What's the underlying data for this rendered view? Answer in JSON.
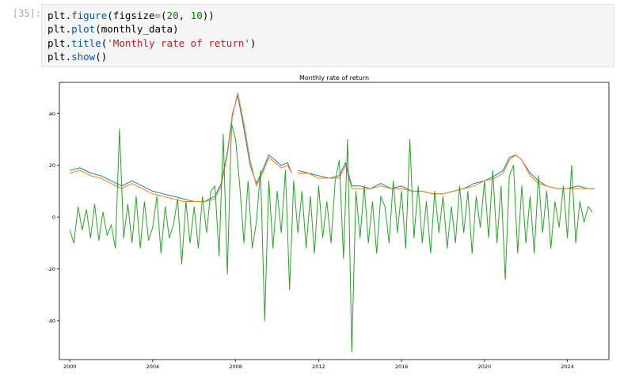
{
  "cell": {
    "prompt": "[35]:",
    "code_lines": [
      [
        {
          "t": "plt",
          "c": "k-var"
        },
        {
          "t": ".",
          "c": "k-p"
        },
        {
          "t": "figure",
          "c": "k-attr"
        },
        {
          "t": "(figsize",
          "c": "k-p"
        },
        {
          "t": "=",
          "c": "k-op"
        },
        {
          "t": "(",
          "c": "k-p"
        },
        {
          "t": "20",
          "c": "k-num"
        },
        {
          "t": ", ",
          "c": "k-p"
        },
        {
          "t": "10",
          "c": "k-num"
        },
        {
          "t": "))",
          "c": "k-p"
        }
      ],
      [
        {
          "t": "plt",
          "c": "k-var"
        },
        {
          "t": ".",
          "c": "k-p"
        },
        {
          "t": "plot",
          "c": "k-attr"
        },
        {
          "t": "(monthly_data)",
          "c": "k-p"
        }
      ],
      [
        {
          "t": "plt",
          "c": "k-var"
        },
        {
          "t": ".",
          "c": "k-p"
        },
        {
          "t": "title",
          "c": "k-attr"
        },
        {
          "t": "(",
          "c": "k-p"
        },
        {
          "t": "'Monthly rate of return'",
          "c": "k-str"
        },
        {
          "t": ")",
          "c": "k-p"
        }
      ],
      [
        {
          "t": "plt",
          "c": "k-var"
        },
        {
          "t": ".",
          "c": "k-p"
        },
        {
          "t": "show",
          "c": "k-attr"
        },
        {
          "t": "()",
          "c": "k-p"
        }
      ]
    ]
  },
  "chart_data": {
    "type": "line",
    "title": "Monthly rate of return",
    "xlabel": "",
    "ylabel": "",
    "xlim": [
      1999.5,
      2026.0
    ],
    "ylim": [
      -55,
      52
    ],
    "xticks": [
      2000,
      2004,
      2008,
      2012,
      2016,
      2020,
      2024
    ],
    "yticks": [
      40,
      20,
      0,
      -20,
      -40
    ],
    "grid": false,
    "colors": [
      "#1f77b4",
      "#ff7f0e",
      "#2ca02c"
    ],
    "series": [
      {
        "x": [
          2000.0,
          2000.5,
          2001.0,
          2001.5,
          2002.0,
          2002.5,
          2003.0,
          2003.5,
          2004.0,
          2004.5,
          2005.0,
          2005.5,
          2006.0,
          2006.5,
          2007.0,
          2007.3,
          2007.6,
          2007.85,
          2008.1,
          2008.4,
          2008.7,
          2009.0,
          2009.3,
          2009.6,
          2009.9,
          2010.2,
          2010.5,
          2010.7,
          null,
          2011.0,
          2011.5,
          2012.0,
          2012.5,
          2013.0,
          2013.3,
          2013.6,
          2014.0,
          2014.5,
          2015.0,
          2015.5,
          2016.0,
          2016.5,
          2017.0,
          2017.5,
          2018.0,
          2018.5,
          2019.0,
          2019.5,
          2020.0,
          2020.5,
          2020.9,
          2021.2,
          2021.5,
          2021.8,
          2022.2,
          2022.6,
          2023.0,
          2023.5,
          2024.0,
          2024.5,
          2025.0,
          2025.3
        ],
        "y": [
          18,
          19,
          17,
          16,
          14,
          12,
          14,
          12,
          10,
          9,
          8,
          7,
          6,
          6,
          8,
          13,
          25,
          40,
          47,
          34,
          20,
          13,
          18,
          24,
          22,
          20,
          21,
          17,
          null,
          18,
          17,
          16,
          15,
          16,
          21,
          12,
          12,
          11,
          13,
          11,
          12,
          10,
          10,
          9,
          9,
          10,
          11,
          13,
          14,
          16,
          18,
          23,
          24,
          22,
          17,
          14,
          12,
          11,
          11,
          12,
          11,
          11
        ]
      },
      {
        "x": [
          2000.0,
          2000.5,
          2001.0,
          2001.5,
          2002.0,
          2002.5,
          2003.0,
          2003.5,
          2004.0,
          2004.5,
          2005.0,
          2005.5,
          2006.0,
          2006.5,
          2007.0,
          2007.3,
          2007.6,
          2007.85,
          2008.1,
          2008.4,
          2008.7,
          2009.0,
          2009.3,
          2009.6,
          2009.9,
          2010.2,
          2010.5,
          2010.7,
          null,
          2011.0,
          2011.5,
          2012.0,
          2012.5,
          2013.0,
          2013.3,
          2013.6,
          2014.0,
          2014.5,
          2015.0,
          2015.5,
          2016.0,
          2016.5,
          2017.0,
          2017.5,
          2018.0,
          2018.5,
          2019.0,
          2019.5,
          2020.0,
          2020.5,
          2020.9,
          2021.2,
          2021.5,
          2021.8,
          2022.2,
          2022.6,
          2023.0,
          2023.5,
          2024.0,
          2024.5,
          2025.0,
          2025.3
        ],
        "y": [
          17,
          18,
          16,
          15,
          13,
          11,
          13,
          11,
          9,
          8,
          7,
          6,
          6,
          6,
          7,
          12,
          24,
          39,
          48,
          36,
          22,
          12,
          17,
          23,
          21,
          19,
          20,
          17,
          null,
          17,
          17,
          15,
          15,
          15,
          20,
          11,
          11,
          11,
          12,
          11,
          11,
          10,
          10,
          9,
          9,
          10,
          11,
          12,
          14,
          15,
          17,
          22,
          24,
          22,
          16,
          13,
          12,
          11,
          11,
          11,
          11,
          11
        ]
      },
      {
        "x": [
          2000.0,
          2000.2,
          2000.4,
          2000.6,
          2000.8,
          2001.0,
          2001.2,
          2001.4,
          2001.6,
          2001.8,
          2002.0,
          2002.2,
          2002.4,
          2002.6,
          2002.8,
          2003.0,
          2003.2,
          2003.4,
          2003.6,
          2003.8,
          2004.0,
          2004.2,
          2004.4,
          2004.6,
          2004.8,
          2005.0,
          2005.2,
          2005.4,
          2005.6,
          2005.8,
          2006.0,
          2006.2,
          2006.4,
          2006.6,
          2006.8,
          2007.0,
          2007.2,
          2007.4,
          2007.6,
          2007.8,
          2008.0,
          2008.2,
          2008.4,
          2008.6,
          2008.8,
          2009.0,
          2009.2,
          2009.4,
          2009.6,
          2009.8,
          2010.0,
          2010.2,
          2010.4,
          2010.6,
          2010.8,
          2011.0,
          2011.2,
          2011.4,
          2011.6,
          2011.8,
          2012.0,
          2012.2,
          2012.4,
          2012.6,
          2012.8,
          2013.0,
          2013.2,
          2013.4,
          2013.6,
          2013.8,
          2014.0,
          2014.2,
          2014.4,
          2014.6,
          2014.8,
          2015.0,
          2015.2,
          2015.4,
          2015.6,
          2015.8,
          2016.0,
          2016.2,
          2016.4,
          2016.6,
          2016.8,
          2017.0,
          2017.2,
          2017.4,
          2017.6,
          2017.8,
          2018.0,
          2018.2,
          2018.4,
          2018.6,
          2018.8,
          2019.0,
          2019.2,
          2019.4,
          2019.6,
          2019.8,
          2020.0,
          2020.2,
          2020.4,
          2020.6,
          2020.8,
          2021.0,
          2021.2,
          2021.4,
          2021.6,
          2021.8,
          2022.0,
          2022.2,
          2022.4,
          2022.6,
          2022.8,
          2023.0,
          2023.2,
          2023.4,
          2023.6,
          2023.8,
          2024.0,
          2024.2,
          2024.4,
          2024.6,
          2024.8,
          2025.0,
          2025.2
        ],
        "y": [
          -5,
          -10,
          4,
          -5,
          3,
          -8,
          5,
          -9,
          2,
          -7,
          -3,
          -12,
          34,
          -8,
          5,
          -10,
          8,
          -12,
          6,
          -9,
          -4,
          8,
          -14,
          4,
          -8,
          -3,
          7,
          -18,
          6,
          -10,
          4,
          -12,
          8,
          -6,
          10,
          12,
          -15,
          32,
          -22,
          36,
          30,
          12,
          -10,
          14,
          -12,
          -2,
          18,
          -40,
          14,
          -12,
          10,
          -6,
          18,
          -28,
          14,
          -6,
          10,
          -12,
          8,
          -14,
          12,
          -8,
          6,
          -10,
          14,
          22,
          -16,
          30,
          -52,
          10,
          -8,
          12,
          -10,
          6,
          -14,
          8,
          4,
          -10,
          14,
          -6,
          10,
          -12,
          30,
          -8,
          12,
          -10,
          6,
          -14,
          10,
          -6,
          8,
          -12,
          4,
          -10,
          12,
          -6,
          10,
          -14,
          8,
          -4,
          14,
          -8,
          18,
          -10,
          12,
          -24,
          16,
          20,
          -14,
          12,
          -10,
          8,
          -14,
          16,
          -6,
          10,
          -12,
          6,
          -4,
          12,
          -8,
          20,
          -10,
          6,
          -2,
          4,
          2
        ]
      }
    ]
  }
}
